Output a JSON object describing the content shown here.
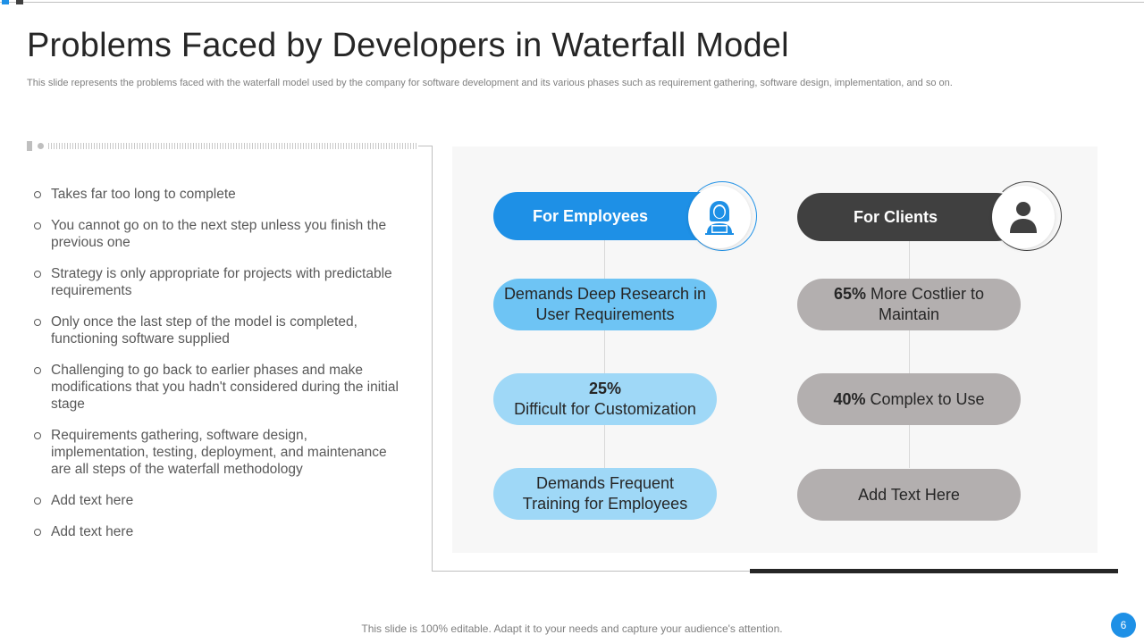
{
  "slide": {
    "title": "Problems Faced by Developers in Waterfall Model",
    "subtitle": "This slide represents the problems faced with the waterfall model used by the company for software development and its various phases such as requirement gathering, software design, implementation, and so on.",
    "footer": "This slide is 100% editable. Adapt it to your needs and capture your audience's attention.",
    "page_number": "6"
  },
  "bullets": [
    "Takes far too long to complete",
    "You cannot go on to the next step unless you finish the previous one",
    "Strategy is only appropriate for projects with predictable requirements",
    "Only once the last step of the model is completed, functioning software supplied",
    "Challenging to go back to earlier phases and make modifications that you hadn't considered during the initial stage",
    "Requirements gathering, software design, implementation, testing, deployment, and maintenance are all steps of the waterfall methodology",
    "Add text here",
    "Add text here"
  ],
  "employees": {
    "header": "For Employees",
    "icon": "employee-laptop-icon",
    "items": [
      {
        "bold": "",
        "text": "Demands Deep Research in User Requirements"
      },
      {
        "bold": "25%",
        "text": "Difficult for Customization"
      },
      {
        "bold": "",
        "text": "Demands Frequent Training for Employees"
      }
    ]
  },
  "clients": {
    "header": "For Clients",
    "icon": "user-icon",
    "items": [
      {
        "bold": "65%",
        "text": "More Costlier to Maintain"
      },
      {
        "bold": "40%",
        "text": "Complex to Use"
      },
      {
        "bold": "",
        "text": "Add Text Here"
      }
    ]
  },
  "colors": {
    "accent_blue": "#1e90e6",
    "dark": "#404040",
    "light_blue": "#6ec4f4",
    "lighter_blue": "#9fd8f7",
    "grey_pill": "#b3afaf"
  }
}
